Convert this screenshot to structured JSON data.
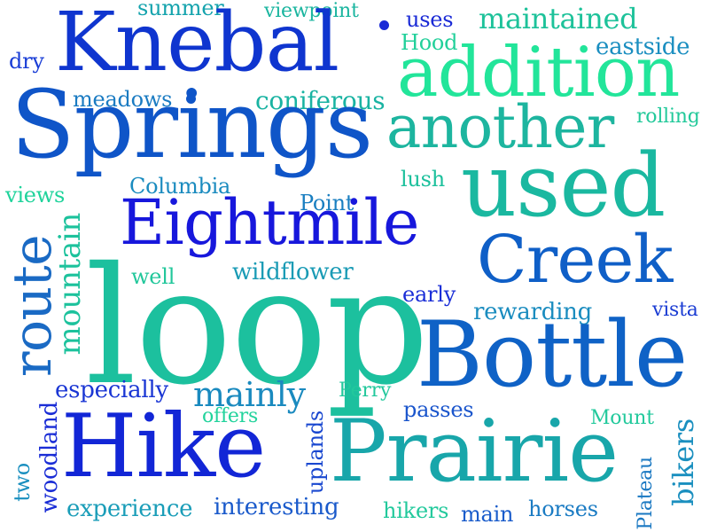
{
  "words": [
    {
      "text": "summer",
      "color": "#14a3ad"
    },
    {
      "text": "viewpoint",
      "color": "#1ab59f"
    },
    {
      "text": "uses",
      "color": "#1a2ad6"
    },
    {
      "text": "maintained",
      "color": "#1dc29a"
    },
    {
      "text": "Knebal",
      "color": "#0f35cf"
    },
    {
      "text": "Hood",
      "color": "#22d09a"
    },
    {
      "text": "eastside",
      "color": "#1a8ec0"
    },
    {
      "text": "dry",
      "color": "#1a3ed6"
    },
    {
      "text": "addition",
      "color": "#22e59a"
    },
    {
      "text": "meadows",
      "color": "#1a7bc2"
    },
    {
      "text": "coniferous",
      "color": "#19b3a2"
    },
    {
      "text": "Springs",
      "color": "#0f55c8"
    },
    {
      "text": "another",
      "color": "#1db59f"
    },
    {
      "text": "rolling",
      "color": "#22c99a"
    },
    {
      "text": "views",
      "color": "#1fd39b"
    },
    {
      "text": "Columbia",
      "color": "#1a8bbf"
    },
    {
      "text": "lush",
      "color": "#1cc09c"
    },
    {
      "text": "used",
      "color": "#1ab8a0"
    },
    {
      "text": "Point",
      "color": "#1a7fc1"
    },
    {
      "text": "Eightmile",
      "color": "#1717dc"
    },
    {
      "text": "Creek",
      "color": "#0f5fc7"
    },
    {
      "text": "well",
      "color": "#22c79b"
    },
    {
      "text": "wildflower",
      "color": "#1a9bb5"
    },
    {
      "text": "route",
      "color": "#1a6ac4"
    },
    {
      "text": "mountain",
      "color": "#1cc29c"
    },
    {
      "text": "loop",
      "color": "#1cc09e"
    },
    {
      "text": "early",
      "color": "#1a2ed7"
    },
    {
      "text": "rewarding",
      "color": "#1a8cbf"
    },
    {
      "text": "vista",
      "color": "#1a3cd3"
    },
    {
      "text": "Bottle",
      "color": "#0f62c6"
    },
    {
      "text": "especially",
      "color": "#1a36d4"
    },
    {
      "text": "mainly",
      "color": "#1a8abf"
    },
    {
      "text": "Perry",
      "color": "#22c89c"
    },
    {
      "text": "passes",
      "color": "#1a55cc"
    },
    {
      "text": "offers",
      "color": "#22d39c"
    },
    {
      "text": "uplands",
      "color": "#1a48d0"
    },
    {
      "text": "Mount",
      "color": "#22c99c"
    },
    {
      "text": "Hike",
      "color": "#1226d6"
    },
    {
      "text": "Prairie",
      "color": "#18a6aa"
    },
    {
      "text": "woodland",
      "color": "#1a2dd6"
    },
    {
      "text": "two",
      "color": "#1a8fbf"
    },
    {
      "text": "experience",
      "color": "#1a9db8"
    },
    {
      "text": "interesting",
      "color": "#1a5acb"
    },
    {
      "text": "hikers",
      "color": "#22c99c"
    },
    {
      "text": "main",
      "color": "#1a5ccb"
    },
    {
      "text": "horses",
      "color": "#1a7bc3"
    },
    {
      "text": "Plateau",
      "color": "#1a78c2"
    },
    {
      "text": "bikers",
      "color": "#1a8fbf"
    }
  ],
  "dots": [
    {
      "color": "#0f55c8"
    },
    {
      "color": "#1a2ad6"
    }
  ]
}
